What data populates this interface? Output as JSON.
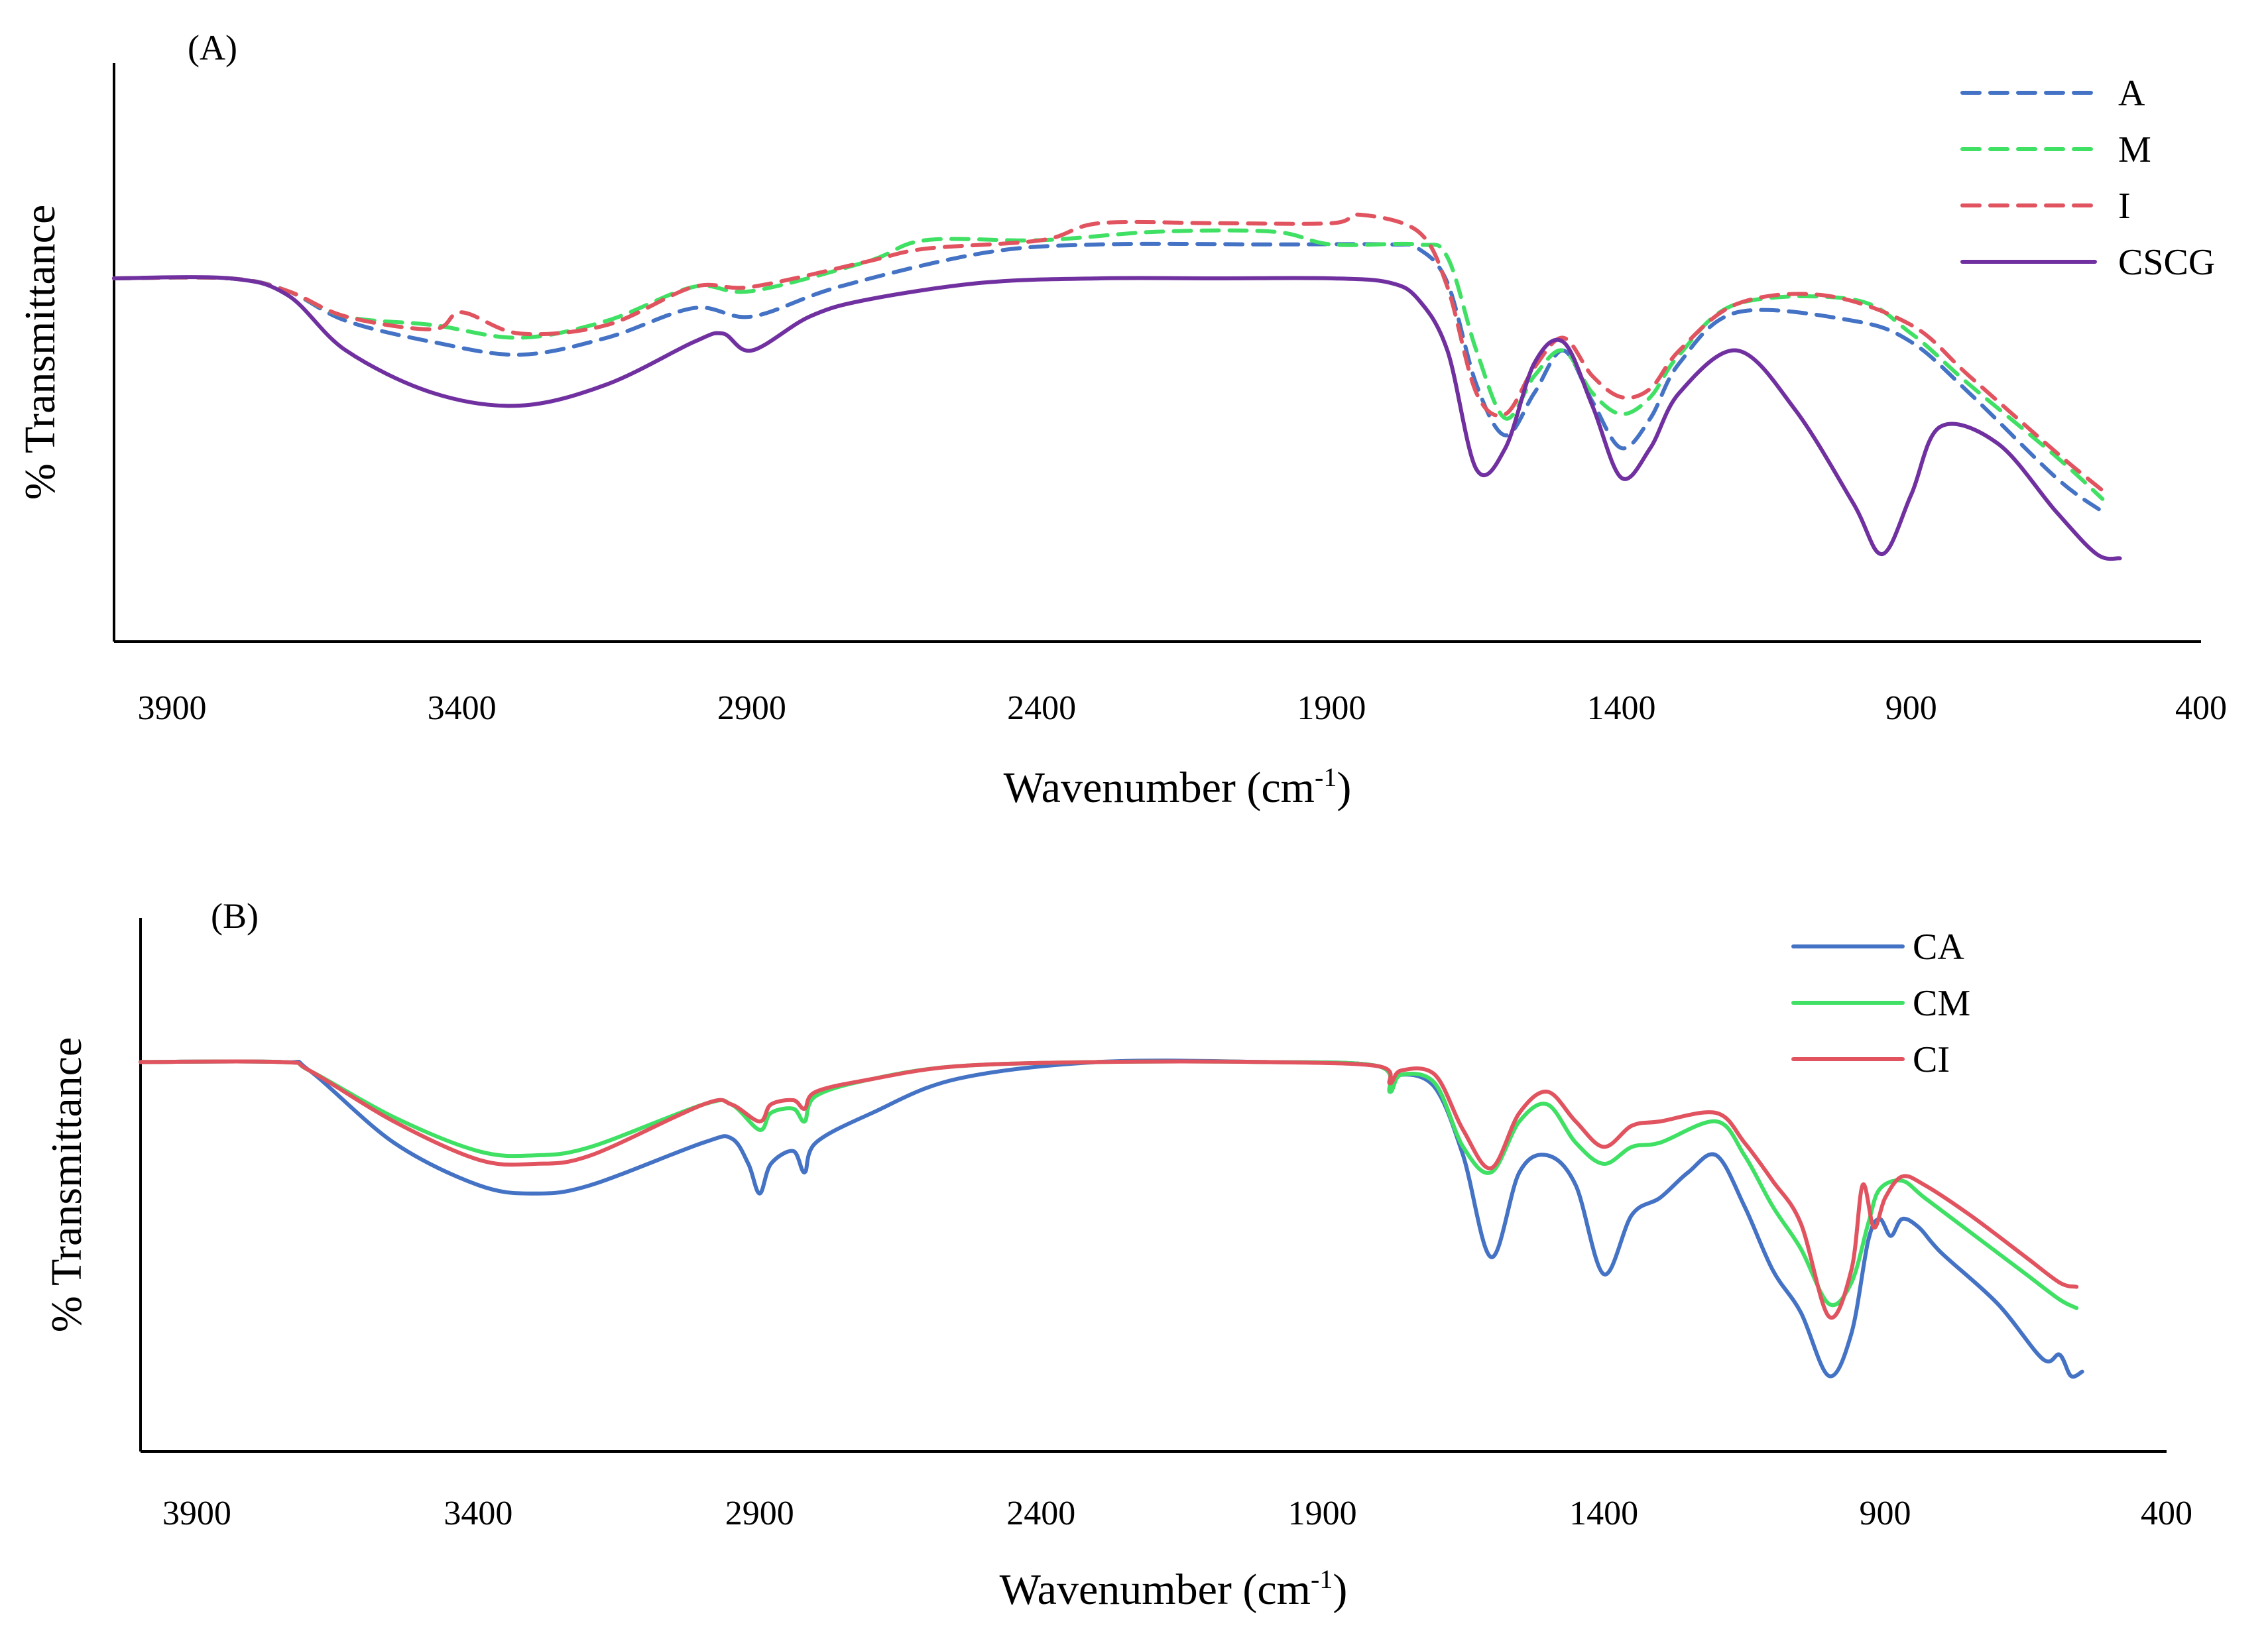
{
  "figure": {
    "panel_a_label": "(A)",
    "panel_b_label": "(B)"
  },
  "chart_data": [
    {
      "panel": "A",
      "type": "line",
      "title": "",
      "xlabel": "Wavenumber (cm",
      "xlabel_sup": "-1",
      "xlabel_tail": ")",
      "ylabel": "% Transmittance",
      "xlim": [
        4000,
        400
      ],
      "ylim": [
        0,
        100
      ],
      "xticks": [
        3900,
        3400,
        2900,
        2400,
        1900,
        1400,
        900,
        400
      ],
      "grid": false,
      "legend": "top-right",
      "series": [
        {
          "name": "A",
          "color": "#4472c4",
          "dash": true,
          "points": [
            [
              4000,
              75
            ],
            [
              3800,
              75
            ],
            [
              3700,
              72
            ],
            [
              3600,
              65
            ],
            [
              3450,
              60
            ],
            [
              3300,
              57
            ],
            [
              3150,
              61
            ],
            [
              3000,
              68
            ],
            [
              2900,
              66
            ],
            [
              2750,
              73
            ],
            [
              2500,
              81
            ],
            [
              2300,
              83
            ],
            [
              2000,
              83
            ],
            [
              1800,
              83
            ],
            [
              1750,
              82
            ],
            [
              1700,
              74
            ],
            [
              1650,
              50
            ],
            [
              1600,
              38
            ],
            [
              1550,
              48
            ],
            [
              1500,
              58
            ],
            [
              1450,
              46
            ],
            [
              1400,
              35
            ],
            [
              1350,
              42
            ],
            [
              1300,
              55
            ],
            [
              1200,
              67
            ],
            [
              1000,
              65
            ],
            [
              900,
              60
            ],
            [
              800,
              48
            ],
            [
              650,
              28
            ],
            [
              570,
              20
            ]
          ]
        },
        {
          "name": "M",
          "color": "#3fe064",
          "dash": true,
          "points": [
            [
              4000,
              75
            ],
            [
              3800,
              75
            ],
            [
              3700,
              72
            ],
            [
              3600,
              66
            ],
            [
              3450,
              64
            ],
            [
              3300,
              61
            ],
            [
              3150,
              65
            ],
            [
              3000,
              73
            ],
            [
              2900,
              72
            ],
            [
              2700,
              79
            ],
            [
              2600,
              84
            ],
            [
              2400,
              84
            ],
            [
              2200,
              86
            ],
            [
              2000,
              86
            ],
            [
              1900,
              83
            ],
            [
              1750,
              83
            ],
            [
              1700,
              80
            ],
            [
              1650,
              58
            ],
            [
              1600,
              42
            ],
            [
              1550,
              52
            ],
            [
              1500,
              58
            ],
            [
              1450,
              48
            ],
            [
              1400,
              43
            ],
            [
              1350,
              47
            ],
            [
              1300,
              57
            ],
            [
              1200,
              69
            ],
            [
              1000,
              70
            ],
            [
              900,
              62
            ],
            [
              800,
              50
            ],
            [
              650,
              33
            ],
            [
              570,
              23
            ]
          ]
        },
        {
          "name": "I",
          "color": "#e0535f",
          "dash": true,
          "points": [
            [
              4000,
              75
            ],
            [
              3800,
              75
            ],
            [
              3700,
              72
            ],
            [
              3600,
              66
            ],
            [
              3450,
              63
            ],
            [
              3400,
              67
            ],
            [
              3300,
              62
            ],
            [
              3150,
              64
            ],
            [
              3000,
              73
            ],
            [
              2900,
              73
            ],
            [
              2700,
              79
            ],
            [
              2600,
              82
            ],
            [
              2400,
              84
            ],
            [
              2300,
              88
            ],
            [
              2100,
              88
            ],
            [
              1900,
              88
            ],
            [
              1850,
              90
            ],
            [
              1750,
              86
            ],
            [
              1700,
              73
            ],
            [
              1650,
              48
            ],
            [
              1600,
              43
            ],
            [
              1550,
              54
            ],
            [
              1500,
              61
            ],
            [
              1450,
              52
            ],
            [
              1400,
              47
            ],
            [
              1350,
              49
            ],
            [
              1300,
              58
            ],
            [
              1200,
              69
            ],
            [
              1050,
              71
            ],
            [
              900,
              64
            ],
            [
              800,
              52
            ],
            [
              650,
              34
            ],
            [
              570,
              25
            ]
          ]
        },
        {
          "name": "CSCG",
          "color": "#7030a0",
          "dash": false,
          "points": [
            [
              4000,
              75
            ],
            [
              3800,
              75
            ],
            [
              3700,
              71
            ],
            [
              3600,
              58
            ],
            [
              3450,
              48
            ],
            [
              3300,
              45
            ],
            [
              3150,
              50
            ],
            [
              3000,
              60
            ],
            [
              2950,
              62
            ],
            [
              2900,
              58
            ],
            [
              2800,
              66
            ],
            [
              2700,
              70
            ],
            [
              2500,
              74
            ],
            [
              2300,
              75
            ],
            [
              2100,
              75
            ],
            [
              1900,
              75
            ],
            [
              1800,
              74
            ],
            [
              1750,
              70
            ],
            [
              1700,
              58
            ],
            [
              1650,
              30
            ],
            [
              1600,
              35
            ],
            [
              1550,
              55
            ],
            [
              1500,
              60
            ],
            [
              1450,
              45
            ],
            [
              1400,
              28
            ],
            [
              1350,
              35
            ],
            [
              1300,
              48
            ],
            [
              1200,
              58
            ],
            [
              1100,
              44
            ],
            [
              1000,
              22
            ],
            [
              950,
              10
            ],
            [
              900,
              24
            ],
            [
              850,
              40
            ],
            [
              750,
              36
            ],
            [
              650,
              20
            ],
            [
              580,
              10
            ],
            [
              540,
              9
            ]
          ]
        }
      ]
    },
    {
      "panel": "B",
      "type": "line",
      "title": "",
      "xlabel": "Wavenumber (cm",
      "xlabel_sup": "-1",
      "xlabel_tail": ")",
      "ylabel": "% Transmittance",
      "xlim": [
        4000,
        400
      ],
      "ylim": [
        0,
        100
      ],
      "xticks": [
        3900,
        3400,
        2900,
        2400,
        1900,
        1400,
        900,
        400
      ],
      "grid": false,
      "legend": "top-right",
      "series": [
        {
          "name": "CA",
          "color": "#4472c4",
          "dash": false,
          "points": [
            [
              4000,
              84
            ],
            [
              3750,
              84
            ],
            [
              3700,
              82
            ],
            [
              3550,
              65
            ],
            [
              3400,
              55
            ],
            [
              3300,
              53
            ],
            [
              3200,
              55
            ],
            [
              3000,
              65
            ],
            [
              2950,
              66
            ],
            [
              2920,
              60
            ],
            [
              2900,
              53
            ],
            [
              2880,
              60
            ],
            [
              2840,
              63
            ],
            [
              2820,
              58
            ],
            [
              2800,
              65
            ],
            [
              2700,
              72
            ],
            [
              2550,
              80
            ],
            [
              2300,
              84
            ],
            [
              2000,
              84
            ],
            [
              1800,
              83
            ],
            [
              1780,
              77
            ],
            [
              1760,
              81
            ],
            [
              1700,
              78
            ],
            [
              1650,
              62
            ],
            [
              1600,
              38
            ],
            [
              1550,
              58
            ],
            [
              1500,
              62
            ],
            [
              1450,
              55
            ],
            [
              1400,
              34
            ],
            [
              1350,
              48
            ],
            [
              1300,
              52
            ],
            [
              1250,
              58
            ],
            [
              1200,
              62
            ],
            [
              1150,
              50
            ],
            [
              1100,
              35
            ],
            [
              1050,
              25
            ],
            [
              1000,
              10
            ],
            [
              960,
              20
            ],
            [
              930,
              42
            ],
            [
              910,
              47
            ],
            [
              890,
              43
            ],
            [
              870,
              47
            ],
            [
              840,
              45
            ],
            [
              800,
              39
            ],
            [
              700,
              27
            ],
            [
              620,
              14
            ],
            [
              590,
              15
            ],
            [
              570,
              10
            ],
            [
              550,
              11
            ]
          ]
        },
        {
          "name": "CM",
          "color": "#3fe064",
          "dash": false,
          "points": [
            [
              4000,
              84
            ],
            [
              3750,
              84
            ],
            [
              3700,
              82
            ],
            [
              3550,
              71
            ],
            [
              3400,
              63
            ],
            [
              3300,
              62
            ],
            [
              3200,
              64
            ],
            [
              3000,
              74
            ],
            [
              2950,
              74
            ],
            [
              2900,
              68
            ],
            [
              2880,
              72
            ],
            [
              2840,
              73
            ],
            [
              2820,
              70
            ],
            [
              2800,
              76
            ],
            [
              2700,
              80
            ],
            [
              2550,
              83
            ],
            [
              2300,
              84
            ],
            [
              2000,
              84
            ],
            [
              1800,
              83
            ],
            [
              1780,
              77
            ],
            [
              1760,
              81
            ],
            [
              1700,
              79
            ],
            [
              1650,
              64
            ],
            [
              1600,
              58
            ],
            [
              1550,
              70
            ],
            [
              1500,
              74
            ],
            [
              1450,
              65
            ],
            [
              1400,
              60
            ],
            [
              1350,
              64
            ],
            [
              1300,
              65
            ],
            [
              1200,
              70
            ],
            [
              1150,
              62
            ],
            [
              1100,
              50
            ],
            [
              1050,
              40
            ],
            [
              1000,
              27
            ],
            [
              960,
              32
            ],
            [
              930,
              46
            ],
            [
              910,
              54
            ],
            [
              870,
              56
            ],
            [
              830,
              52
            ],
            [
              750,
              44
            ],
            [
              650,
              34
            ],
            [
              590,
              28
            ],
            [
              560,
              26
            ]
          ]
        },
        {
          "name": "CI",
          "color": "#e0535f",
          "dash": false,
          "points": [
            [
              4000,
              84
            ],
            [
              3750,
              84
            ],
            [
              3700,
              82
            ],
            [
              3550,
              70
            ],
            [
              3400,
              61
            ],
            [
              3300,
              60
            ],
            [
              3200,
              62
            ],
            [
              3000,
              74
            ],
            [
              2950,
              74
            ],
            [
              2900,
              70
            ],
            [
              2880,
              74
            ],
            [
              2840,
              75
            ],
            [
              2820,
              73
            ],
            [
              2800,
              77
            ],
            [
              2700,
              80
            ],
            [
              2550,
              83
            ],
            [
              2300,
              84
            ],
            [
              2000,
              84
            ],
            [
              1800,
              83
            ],
            [
              1780,
              79
            ],
            [
              1760,
              82
            ],
            [
              1700,
              81
            ],
            [
              1650,
              68
            ],
            [
              1600,
              59
            ],
            [
              1550,
              72
            ],
            [
              1500,
              77
            ],
            [
              1450,
              70
            ],
            [
              1400,
              64
            ],
            [
              1350,
              69
            ],
            [
              1300,
              70
            ],
            [
              1200,
              72
            ],
            [
              1150,
              65
            ],
            [
              1100,
              56
            ],
            [
              1050,
              46
            ],
            [
              1000,
              24
            ],
            [
              960,
              35
            ],
            [
              940,
              55
            ],
            [
              920,
              45
            ],
            [
              900,
              52
            ],
            [
              870,
              57
            ],
            [
              830,
              55
            ],
            [
              750,
              48
            ],
            [
              650,
              38
            ],
            [
              590,
              32
            ],
            [
              560,
              31
            ]
          ]
        }
      ]
    }
  ]
}
